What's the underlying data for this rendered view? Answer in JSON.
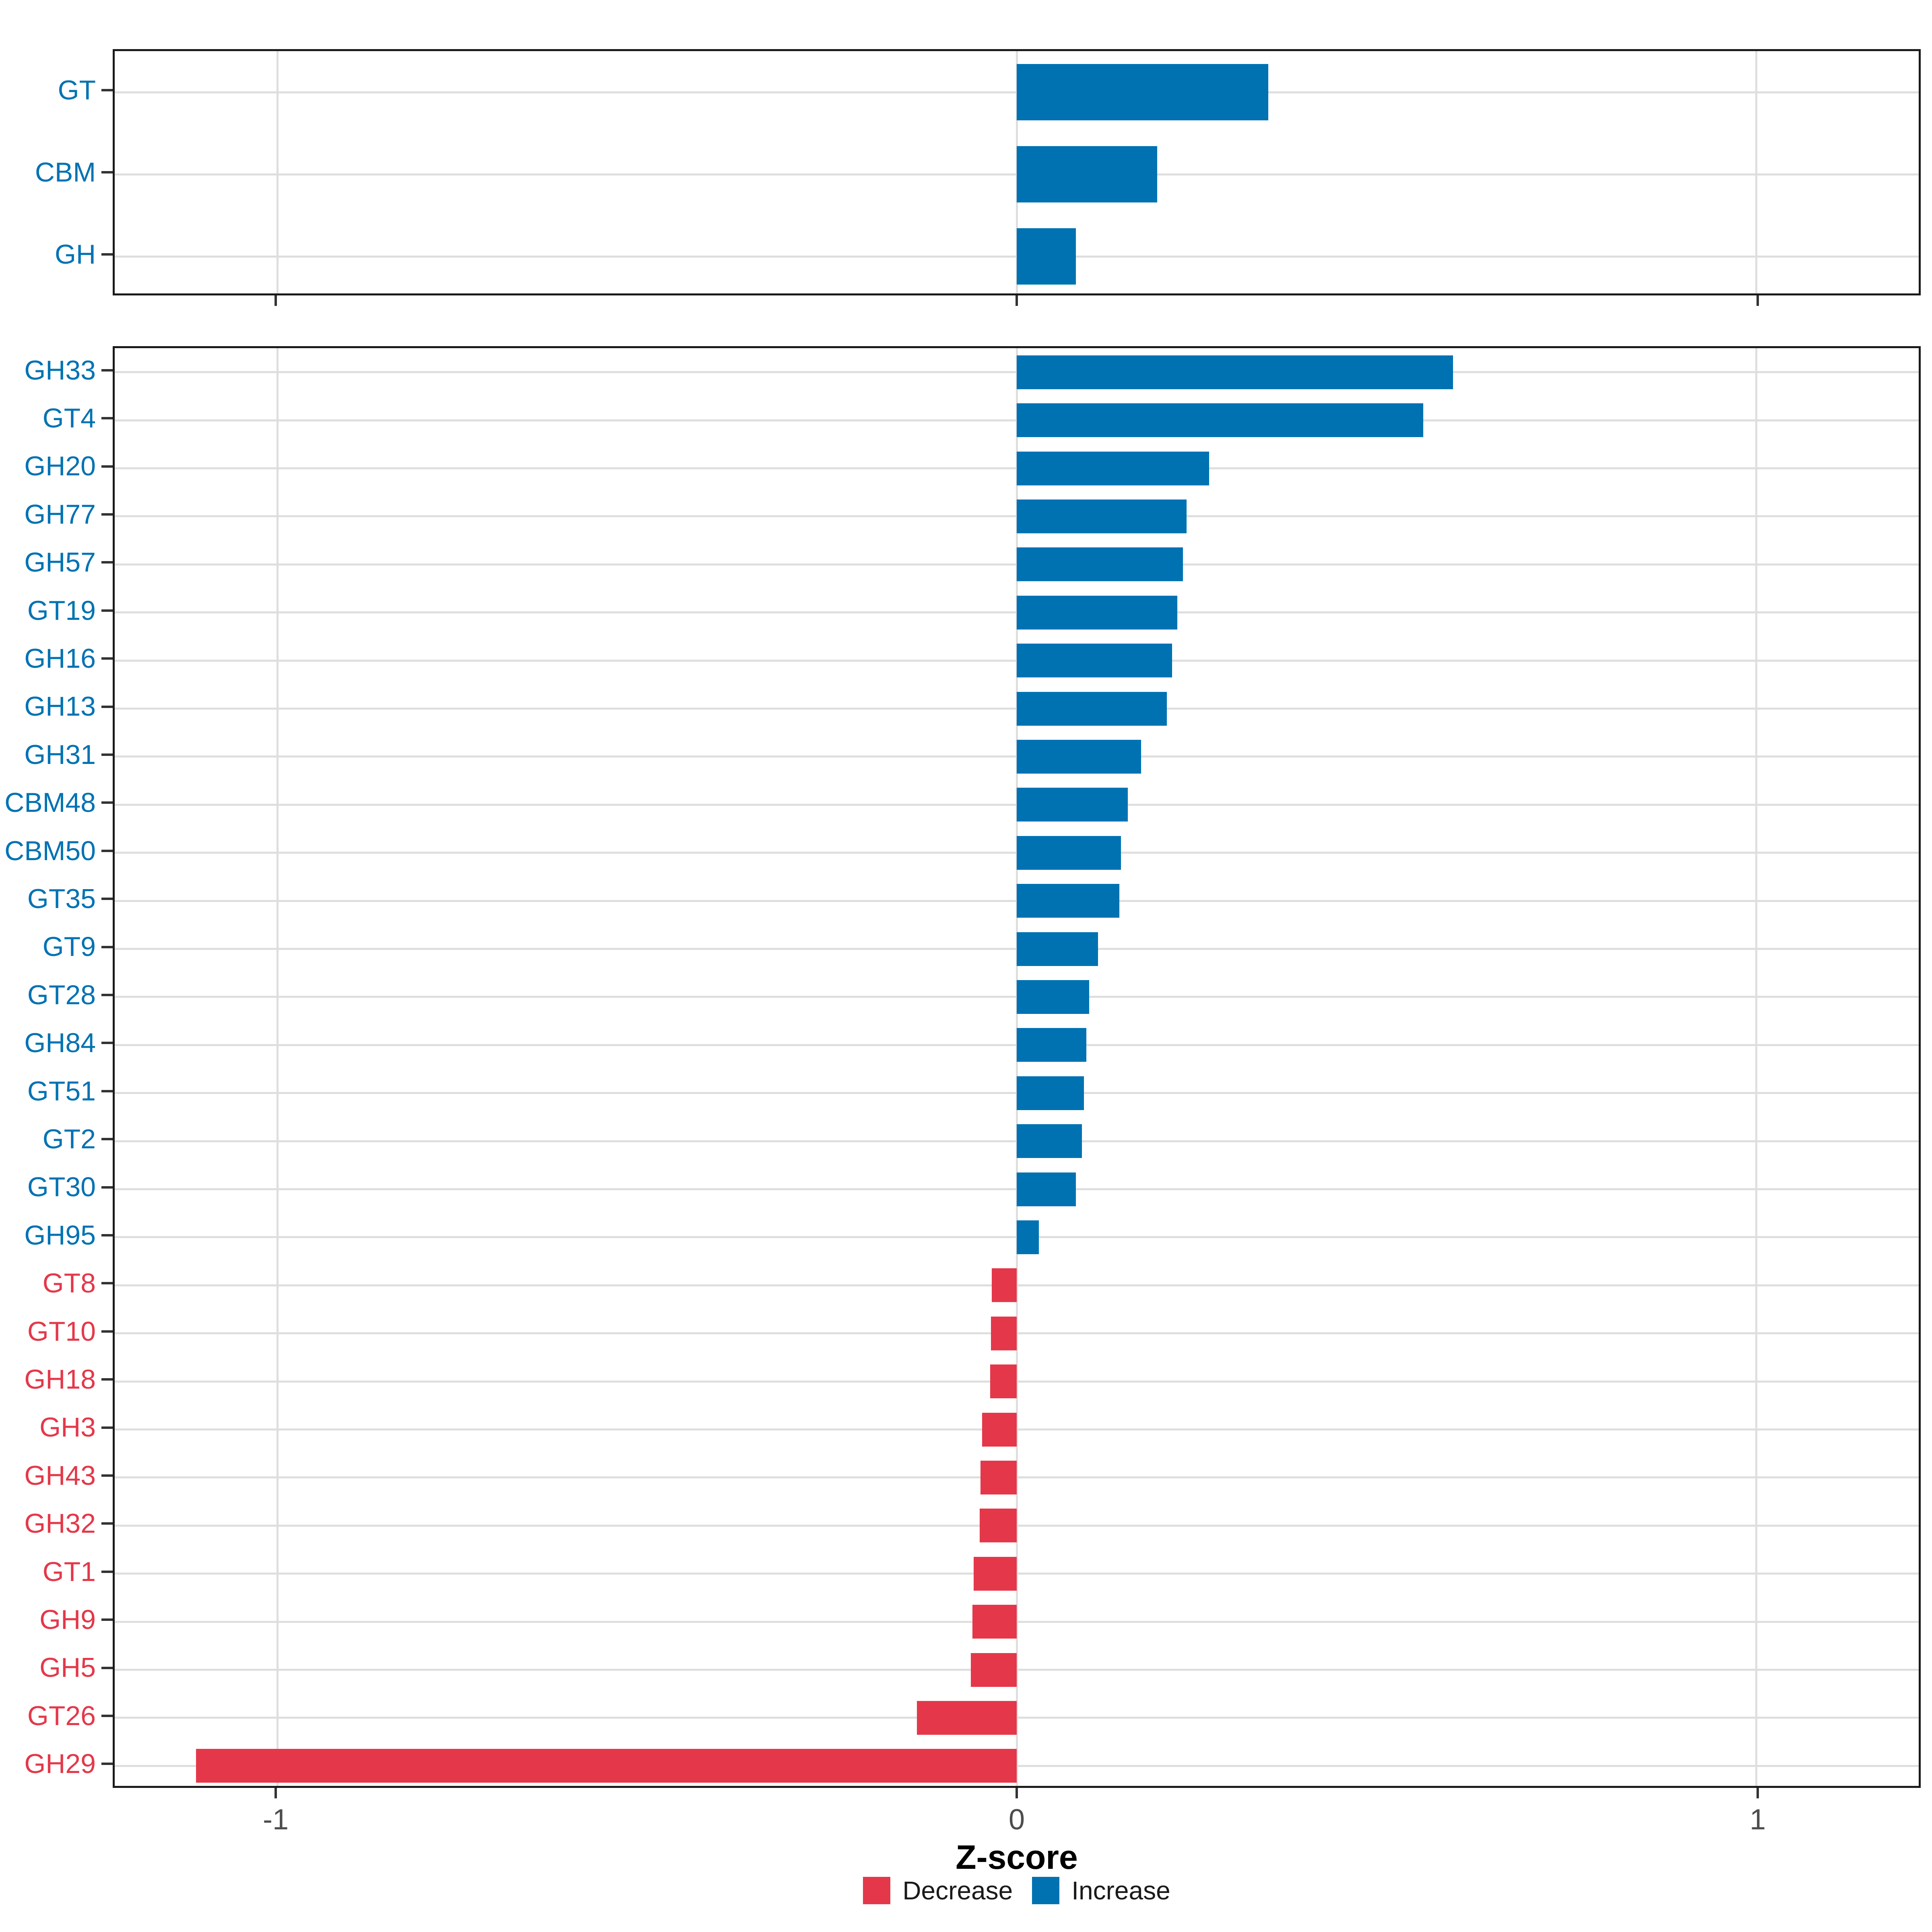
{
  "axis": {
    "x_label": "Z-score",
    "x_tick_labels": [
      "-1",
      "0",
      "1"
    ]
  },
  "legend": {
    "items": [
      {
        "label": "Decrease",
        "color": "#E4384A"
      },
      {
        "label": "Increase",
        "color": "#0072B2"
      }
    ]
  },
  "colors": {
    "increase": "#0072B2",
    "decrease": "#E4384A",
    "gridline": "#DEDEDE",
    "panel_border": "#1A1A1A",
    "axis_tick": "#333333",
    "tick_label": "#4D4D4D",
    "axis_title": "#000000",
    "background": "#FFFFFF"
  },
  "chart_data": [
    {
      "type": "bar",
      "panel": "enzyme-class",
      "orientation": "horizontal",
      "categories": [
        "GT",
        "CBM",
        "GH"
      ],
      "values": [
        0.34,
        0.19,
        0.08
      ],
      "xlim": [
        -1.22,
        1.22
      ],
      "xticks": [
        -1,
        0,
        1
      ],
      "grid": true,
      "color_rule": "positive=increase, negative=decrease"
    },
    {
      "type": "bar",
      "panel": "cazyme-family",
      "orientation": "horizontal",
      "categories": [
        "GH33",
        "GT4",
        "GH20",
        "GH77",
        "GH57",
        "GT19",
        "GH16",
        "GH13",
        "GH31",
        "CBM48",
        "CBM50",
        "GT35",
        "GT9",
        "GT28",
        "GH84",
        "GT51",
        "GT2",
        "GT30",
        "GH95",
        "GT8",
        "GT10",
        "GH18",
        "GH3",
        "GH43",
        "GH32",
        "GT1",
        "GH9",
        "GH5",
        "GT26",
        "GH29"
      ],
      "values": [
        0.59,
        0.55,
        0.26,
        0.23,
        0.225,
        0.217,
        0.21,
        0.203,
        0.168,
        0.15,
        0.141,
        0.139,
        0.11,
        0.098,
        0.094,
        0.091,
        0.088,
        0.08,
        0.03,
        -0.034,
        -0.035,
        -0.036,
        -0.047,
        -0.049,
        -0.05,
        -0.058,
        -0.06,
        -0.062,
        -0.135,
        -1.11
      ],
      "xlim": [
        -1.22,
        1.22
      ],
      "xticks": [
        -1,
        0,
        1
      ],
      "grid": true,
      "color_rule": "positive=increase, negative=decrease"
    }
  ]
}
